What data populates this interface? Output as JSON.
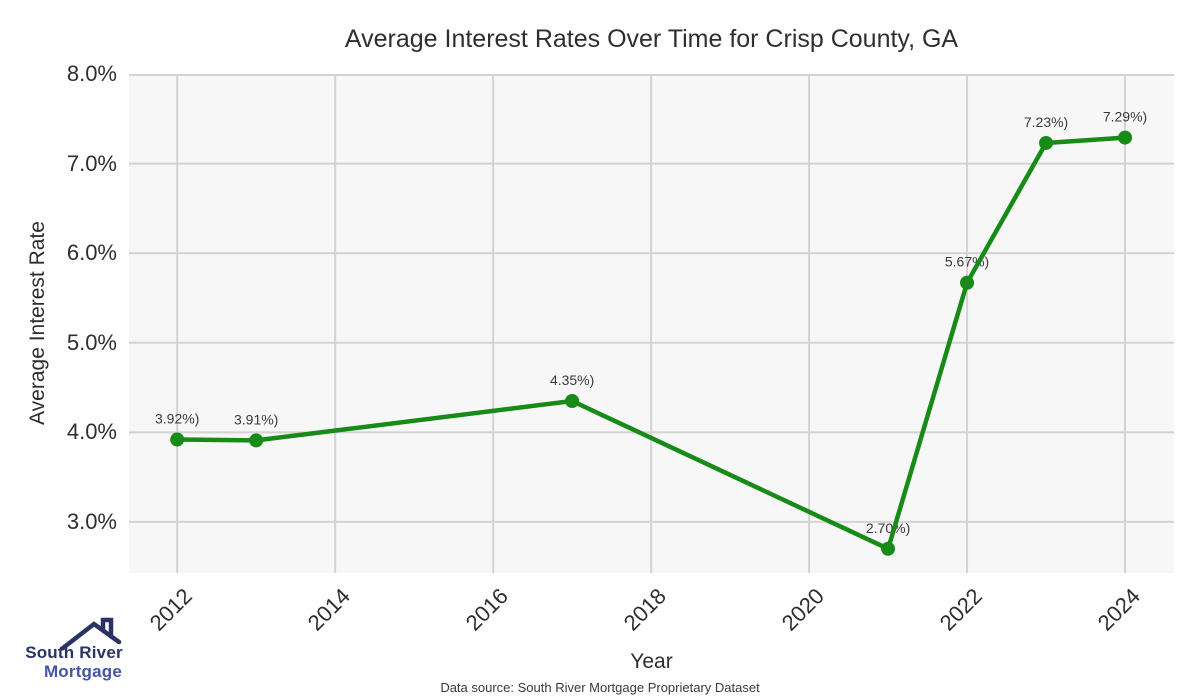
{
  "title": "Average Interest Rates Over Time for Crisp County, GA",
  "footer": {
    "source_text": "Data source: South River Mortgage Proprietary Dataset"
  },
  "logo": {
    "line1": "South River",
    "line2": "Mortgage",
    "color_primary": "#2b3365",
    "color_secondary": "#4355a4"
  },
  "chart_data": {
    "type": "line",
    "title": "Average Interest Rates Over Time for Crisp County, GA",
    "xlabel": "Year",
    "ylabel": "Average Interest Rate",
    "series": [
      {
        "name": "Average Interest Rate",
        "color": "#178a17",
        "x": [
          2012,
          2013,
          2017,
          2021,
          2022,
          2023,
          2024
        ],
        "y": [
          3.92,
          3.91,
          4.35,
          2.7,
          5.67,
          7.23,
          7.29
        ],
        "point_labels": [
          "3.92%)",
          "3.91%)",
          "4.35%)",
          "2.70%)",
          "5.67%)",
          "7.23%)",
          "7.29%)"
        ]
      }
    ],
    "x_ticks": {
      "values": [
        2012,
        2014,
        2016,
        2018,
        2020,
        2022,
        2024
      ],
      "labels": [
        "2012",
        "2014",
        "2016",
        "2018",
        "2020",
        "2022",
        "2024"
      ]
    },
    "y_ticks": {
      "values": [
        8,
        7,
        6,
        5,
        4,
        3
      ],
      "labels": [
        "8.0%",
        "7.0%",
        "6.0%",
        "5.0%",
        "4.0%",
        "3.0%"
      ]
    },
    "xlim": [
      2011.39,
      2024.62
    ],
    "ylim": [
      2.43,
      8.0
    ],
    "grid": true,
    "legend": "none",
    "panel_bg": "#f7f7f7",
    "grid_color": "#d3d3d3",
    "annotation_color": "#3a3a3a"
  }
}
